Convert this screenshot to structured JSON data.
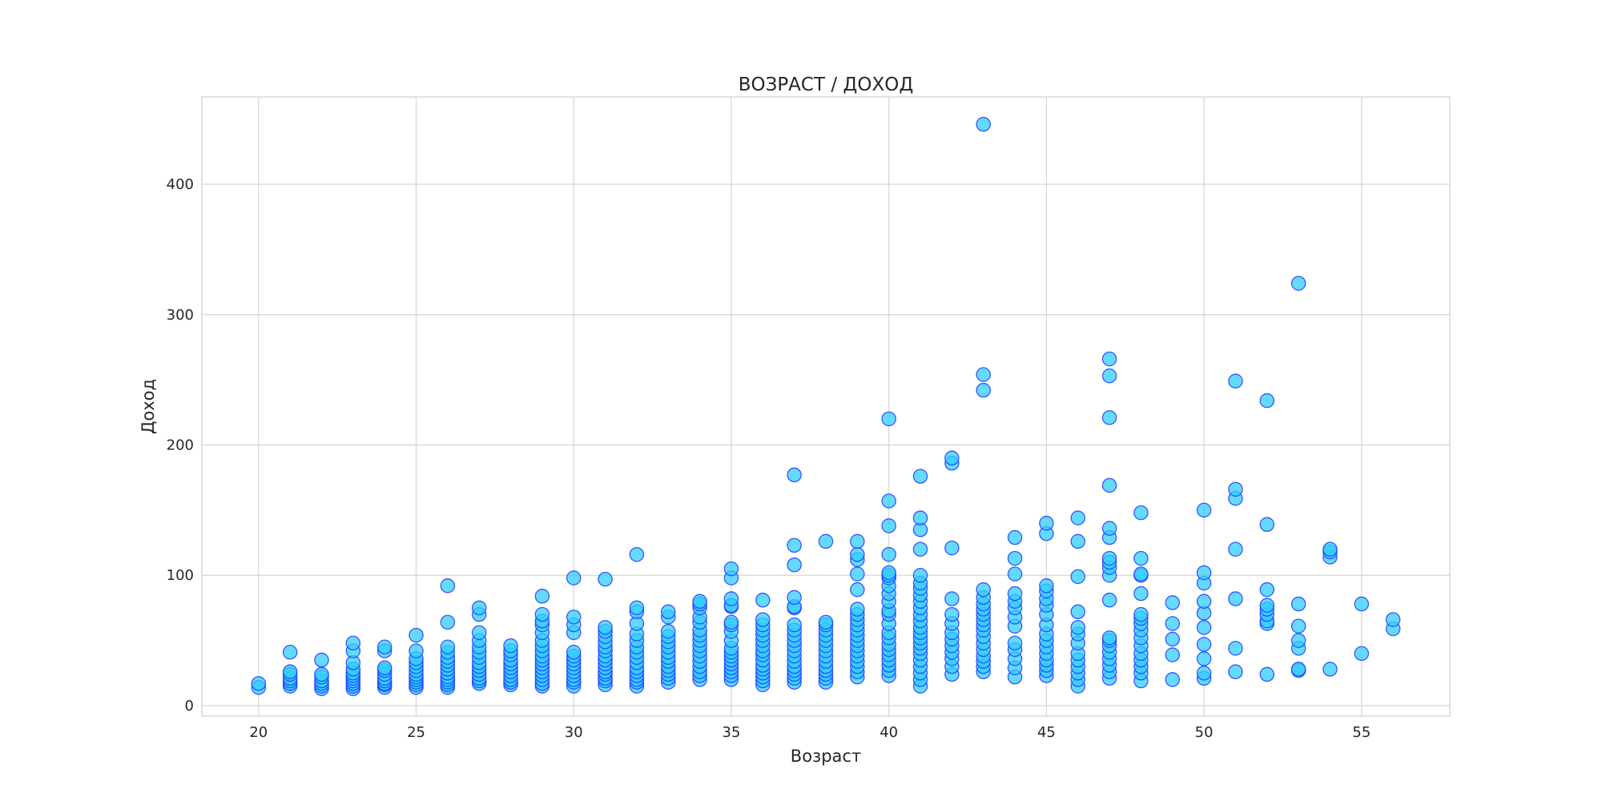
{
  "chart_data": {
    "type": "scatter",
    "title": "ВОЗРАСТ / ДОХОД",
    "xlabel": "Возраст",
    "ylabel": "Доход",
    "xlim": [
      18.2,
      57.8
    ],
    "ylim": [
      -8,
      467
    ],
    "xticks": [
      20,
      25,
      30,
      35,
      40,
      45,
      50,
      55
    ],
    "yticks": [
      0,
      100,
      200,
      300,
      400
    ],
    "grid": true,
    "marker_fill": "#33ccff",
    "marker_edge": "#1f3dff",
    "marker_alpha": 0.75,
    "points": [
      [
        20,
        14
      ],
      [
        20,
        17
      ],
      [
        21,
        15
      ],
      [
        21,
        17
      ],
      [
        21,
        19
      ],
      [
        21,
        21
      ],
      [
        21,
        24
      ],
      [
        21,
        26
      ],
      [
        21,
        41
      ],
      [
        22,
        13
      ],
      [
        22,
        15
      ],
      [
        22,
        17
      ],
      [
        22,
        19
      ],
      [
        22,
        22
      ],
      [
        22,
        24
      ],
      [
        22,
        35
      ],
      [
        23,
        13
      ],
      [
        23,
        15
      ],
      [
        23,
        17
      ],
      [
        23,
        19
      ],
      [
        23,
        21
      ],
      [
        23,
        23
      ],
      [
        23,
        25
      ],
      [
        23,
        28
      ],
      [
        23,
        33
      ],
      [
        23,
        42
      ],
      [
        23,
        48
      ],
      [
        24,
        14
      ],
      [
        24,
        16
      ],
      [
        24,
        17
      ],
      [
        24,
        19
      ],
      [
        24,
        21
      ],
      [
        24,
        24
      ],
      [
        24,
        27
      ],
      [
        24,
        29
      ],
      [
        24,
        42
      ],
      [
        24,
        45
      ],
      [
        25,
        14
      ],
      [
        25,
        16
      ],
      [
        25,
        18
      ],
      [
        25,
        20
      ],
      [
        25,
        22
      ],
      [
        25,
        24
      ],
      [
        25,
        27
      ],
      [
        25,
        30
      ],
      [
        25,
        33
      ],
      [
        25,
        36
      ],
      [
        25,
        42
      ],
      [
        25,
        54
      ],
      [
        26,
        14
      ],
      [
        26,
        16
      ],
      [
        26,
        18
      ],
      [
        26,
        20
      ],
      [
        26,
        22
      ],
      [
        26,
        25
      ],
      [
        26,
        28
      ],
      [
        26,
        31
      ],
      [
        26,
        34
      ],
      [
        26,
        37
      ],
      [
        26,
        41
      ],
      [
        26,
        45
      ],
      [
        26,
        64
      ],
      [
        26,
        92
      ],
      [
        27,
        17
      ],
      [
        27,
        19
      ],
      [
        27,
        21
      ],
      [
        27,
        24
      ],
      [
        27,
        27
      ],
      [
        27,
        30
      ],
      [
        27,
        33
      ],
      [
        27,
        37
      ],
      [
        27,
        41
      ],
      [
        27,
        45
      ],
      [
        27,
        50
      ],
      [
        27,
        56
      ],
      [
        27,
        70
      ],
      [
        27,
        75
      ],
      [
        28,
        16
      ],
      [
        28,
        18
      ],
      [
        28,
        20
      ],
      [
        28,
        23
      ],
      [
        28,
        26
      ],
      [
        28,
        29
      ],
      [
        28,
        32
      ],
      [
        28,
        35
      ],
      [
        28,
        39
      ],
      [
        28,
        42
      ],
      [
        28,
        46
      ],
      [
        29,
        15
      ],
      [
        29,
        17
      ],
      [
        29,
        20
      ],
      [
        29,
        23
      ],
      [
        29,
        26
      ],
      [
        29,
        29
      ],
      [
        29,
        32
      ],
      [
        29,
        35
      ],
      [
        29,
        38
      ],
      [
        29,
        42
      ],
      [
        29,
        46
      ],
      [
        29,
        50
      ],
      [
        29,
        56
      ],
      [
        29,
        62
      ],
      [
        29,
        65
      ],
      [
        29,
        70
      ],
      [
        29,
        84
      ],
      [
        30,
        15
      ],
      [
        30,
        18
      ],
      [
        30,
        20
      ],
      [
        30,
        23
      ],
      [
        30,
        26
      ],
      [
        30,
        29
      ],
      [
        30,
        32
      ],
      [
        30,
        35
      ],
      [
        30,
        38
      ],
      [
        30,
        41
      ],
      [
        30,
        56
      ],
      [
        30,
        62
      ],
      [
        30,
        68
      ],
      [
        30,
        98
      ],
      [
        31,
        16
      ],
      [
        31,
        19
      ],
      [
        31,
        21
      ],
      [
        31,
        24
      ],
      [
        31,
        26
      ],
      [
        31,
        29
      ],
      [
        31,
        32
      ],
      [
        31,
        35
      ],
      [
        31,
        38
      ],
      [
        31,
        42
      ],
      [
        31,
        45
      ],
      [
        31,
        49
      ],
      [
        31,
        53
      ],
      [
        31,
        57
      ],
      [
        31,
        60
      ],
      [
        31,
        97
      ],
      [
        32,
        15
      ],
      [
        32,
        18
      ],
      [
        32,
        20
      ],
      [
        32,
        23
      ],
      [
        32,
        26
      ],
      [
        32,
        29
      ],
      [
        32,
        33
      ],
      [
        32,
        37
      ],
      [
        32,
        41
      ],
      [
        32,
        45
      ],
      [
        32,
        50
      ],
      [
        32,
        55
      ],
      [
        32,
        63
      ],
      [
        32,
        72
      ],
      [
        32,
        75
      ],
      [
        32,
        116
      ],
      [
        33,
        18
      ],
      [
        33,
        21
      ],
      [
        33,
        24
      ],
      [
        33,
        27
      ],
      [
        33,
        30
      ],
      [
        33,
        34
      ],
      [
        33,
        37
      ],
      [
        33,
        41
      ],
      [
        33,
        45
      ],
      [
        33,
        49
      ],
      [
        33,
        53
      ],
      [
        33,
        57
      ],
      [
        33,
        68
      ],
      [
        33,
        72
      ],
      [
        34,
        20
      ],
      [
        34,
        23
      ],
      [
        34,
        26
      ],
      [
        34,
        30
      ],
      [
        34,
        34
      ],
      [
        34,
        38
      ],
      [
        34,
        42
      ],
      [
        34,
        46
      ],
      [
        34,
        50
      ],
      [
        34,
        54
      ],
      [
        34,
        58
      ],
      [
        34,
        64
      ],
      [
        34,
        68
      ],
      [
        34,
        75
      ],
      [
        34,
        78
      ],
      [
        34,
        80
      ],
      [
        35,
        20
      ],
      [
        35,
        23
      ],
      [
        35,
        26
      ],
      [
        35,
        29
      ],
      [
        35,
        32
      ],
      [
        35,
        35
      ],
      [
        35,
        38
      ],
      [
        35,
        41
      ],
      [
        35,
        44
      ],
      [
        35,
        50
      ],
      [
        35,
        57
      ],
      [
        35,
        62
      ],
      [
        35,
        64
      ],
      [
        35,
        76
      ],
      [
        35,
        77
      ],
      [
        35,
        82
      ],
      [
        35,
        98
      ],
      [
        35,
        105
      ],
      [
        36,
        16
      ],
      [
        36,
        19
      ],
      [
        36,
        22
      ],
      [
        36,
        25
      ],
      [
        36,
        28
      ],
      [
        36,
        31
      ],
      [
        36,
        35
      ],
      [
        36,
        39
      ],
      [
        36,
        42
      ],
      [
        36,
        46
      ],
      [
        36,
        50
      ],
      [
        36,
        54
      ],
      [
        36,
        58
      ],
      [
        36,
        62
      ],
      [
        36,
        66
      ],
      [
        36,
        81
      ],
      [
        37,
        18
      ],
      [
        37,
        21
      ],
      [
        37,
        24
      ],
      [
        37,
        27
      ],
      [
        37,
        30
      ],
      [
        37,
        34
      ],
      [
        37,
        38
      ],
      [
        37,
        42
      ],
      [
        37,
        46
      ],
      [
        37,
        50
      ],
      [
        37,
        54
      ],
      [
        37,
        58
      ],
      [
        37,
        62
      ],
      [
        37,
        75
      ],
      [
        37,
        76
      ],
      [
        37,
        83
      ],
      [
        37,
        108
      ],
      [
        37,
        123
      ],
      [
        37,
        177
      ],
      [
        38,
        18
      ],
      [
        38,
        21
      ],
      [
        38,
        24
      ],
      [
        38,
        27
      ],
      [
        38,
        30
      ],
      [
        38,
        34
      ],
      [
        38,
        38
      ],
      [
        38,
        42
      ],
      [
        38,
        46
      ],
      [
        38,
        50
      ],
      [
        38,
        54
      ],
      [
        38,
        58
      ],
      [
        38,
        62
      ],
      [
        38,
        64
      ],
      [
        38,
        126
      ],
      [
        39,
        22
      ],
      [
        39,
        26
      ],
      [
        39,
        30
      ],
      [
        39,
        34
      ],
      [
        39,
        38
      ],
      [
        39,
        42
      ],
      [
        39,
        46
      ],
      [
        39,
        50
      ],
      [
        39,
        54
      ],
      [
        39,
        58
      ],
      [
        39,
        62
      ],
      [
        39,
        66
      ],
      [
        39,
        70
      ],
      [
        39,
        74
      ],
      [
        39,
        89
      ],
      [
        39,
        101
      ],
      [
        39,
        112
      ],
      [
        39,
        116
      ],
      [
        39,
        126
      ],
      [
        40,
        23
      ],
      [
        40,
        27
      ],
      [
        40,
        31
      ],
      [
        40,
        35
      ],
      [
        40,
        39
      ],
      [
        40,
        43
      ],
      [
        40,
        47
      ],
      [
        40,
        52
      ],
      [
        40,
        56
      ],
      [
        40,
        63
      ],
      [
        40,
        70
      ],
      [
        40,
        73
      ],
      [
        40,
        80
      ],
      [
        40,
        86
      ],
      [
        40,
        92
      ],
      [
        40,
        98
      ],
      [
        40,
        100
      ],
      [
        40,
        102
      ],
      [
        40,
        116
      ],
      [
        40,
        138
      ],
      [
        40,
        157
      ],
      [
        40,
        220
      ],
      [
        41,
        15
      ],
      [
        41,
        20
      ],
      [
        41,
        25
      ],
      [
        41,
        30
      ],
      [
        41,
        35
      ],
      [
        41,
        40
      ],
      [
        41,
        44
      ],
      [
        41,
        48
      ],
      [
        41,
        52
      ],
      [
        41,
        56
      ],
      [
        41,
        60
      ],
      [
        41,
        65
      ],
      [
        41,
        70
      ],
      [
        41,
        75
      ],
      [
        41,
        80
      ],
      [
        41,
        85
      ],
      [
        41,
        90
      ],
      [
        41,
        94
      ],
      [
        41,
        100
      ],
      [
        41,
        120
      ],
      [
        41,
        135
      ],
      [
        41,
        144
      ],
      [
        41,
        176
      ],
      [
        42,
        24
      ],
      [
        42,
        30
      ],
      [
        42,
        36
      ],
      [
        42,
        41
      ],
      [
        42,
        46
      ],
      [
        42,
        51
      ],
      [
        42,
        56
      ],
      [
        42,
        63
      ],
      [
        42,
        70
      ],
      [
        42,
        82
      ],
      [
        42,
        121
      ],
      [
        42,
        186
      ],
      [
        42,
        190
      ],
      [
        43,
        26
      ],
      [
        43,
        30
      ],
      [
        43,
        34
      ],
      [
        43,
        38
      ],
      [
        43,
        43
      ],
      [
        43,
        48
      ],
      [
        43,
        53
      ],
      [
        43,
        58
      ],
      [
        43,
        62
      ],
      [
        43,
        66
      ],
      [
        43,
        70
      ],
      [
        43,
        74
      ],
      [
        43,
        78
      ],
      [
        43,
        83
      ],
      [
        43,
        89
      ],
      [
        43,
        242
      ],
      [
        43,
        254
      ],
      [
        43,
        446
      ],
      [
        44,
        22
      ],
      [
        44,
        29
      ],
      [
        44,
        36
      ],
      [
        44,
        43
      ],
      [
        44,
        48
      ],
      [
        44,
        61
      ],
      [
        44,
        68
      ],
      [
        44,
        75
      ],
      [
        44,
        80
      ],
      [
        44,
        86
      ],
      [
        44,
        101
      ],
      [
        44,
        113
      ],
      [
        44,
        129
      ],
      [
        45,
        23
      ],
      [
        45,
        27
      ],
      [
        45,
        31
      ],
      [
        45,
        35
      ],
      [
        45,
        40
      ],
      [
        45,
        45
      ],
      [
        45,
        50
      ],
      [
        45,
        55
      ],
      [
        45,
        62
      ],
      [
        45,
        70
      ],
      [
        45,
        77
      ],
      [
        45,
        82
      ],
      [
        45,
        88
      ],
      [
        45,
        92
      ],
      [
        45,
        132
      ],
      [
        45,
        140
      ],
      [
        46,
        15
      ],
      [
        46,
        20
      ],
      [
        46,
        25
      ],
      [
        46,
        30
      ],
      [
        46,
        35
      ],
      [
        46,
        40
      ],
      [
        46,
        48
      ],
      [
        46,
        55
      ],
      [
        46,
        60
      ],
      [
        46,
        72
      ],
      [
        46,
        99
      ],
      [
        46,
        126
      ],
      [
        46,
        144
      ],
      [
        47,
        21
      ],
      [
        47,
        26
      ],
      [
        47,
        31
      ],
      [
        47,
        36
      ],
      [
        47,
        41
      ],
      [
        47,
        46
      ],
      [
        47,
        50
      ],
      [
        47,
        52
      ],
      [
        47,
        81
      ],
      [
        47,
        100
      ],
      [
        47,
        106
      ],
      [
        47,
        110
      ],
      [
        47,
        113
      ],
      [
        47,
        129
      ],
      [
        47,
        136
      ],
      [
        47,
        169
      ],
      [
        47,
        221
      ],
      [
        47,
        253
      ],
      [
        47,
        266
      ],
      [
        48,
        19
      ],
      [
        48,
        25
      ],
      [
        48,
        30
      ],
      [
        48,
        35
      ],
      [
        48,
        40
      ],
      [
        48,
        46
      ],
      [
        48,
        52
      ],
      [
        48,
        58
      ],
      [
        48,
        63
      ],
      [
        48,
        67
      ],
      [
        48,
        70
      ],
      [
        48,
        86
      ],
      [
        48,
        100
      ],
      [
        48,
        101
      ],
      [
        48,
        113
      ],
      [
        48,
        148
      ],
      [
        49,
        20
      ],
      [
        49,
        39
      ],
      [
        49,
        51
      ],
      [
        49,
        63
      ],
      [
        49,
        79
      ],
      [
        50,
        21
      ],
      [
        50,
        25
      ],
      [
        50,
        36
      ],
      [
        50,
        47
      ],
      [
        50,
        60
      ],
      [
        50,
        71
      ],
      [
        50,
        80
      ],
      [
        50,
        94
      ],
      [
        50,
        102
      ],
      [
        50,
        150
      ],
      [
        51,
        26
      ],
      [
        51,
        44
      ],
      [
        51,
        82
      ],
      [
        51,
        120
      ],
      [
        51,
        159
      ],
      [
        51,
        166
      ],
      [
        51,
        249
      ],
      [
        52,
        24
      ],
      [
        52,
        63
      ],
      [
        52,
        65
      ],
      [
        52,
        70
      ],
      [
        52,
        74
      ],
      [
        52,
        77
      ],
      [
        52,
        89
      ],
      [
        52,
        139
      ],
      [
        52,
        234
      ],
      [
        53,
        27
      ],
      [
        53,
        28
      ],
      [
        53,
        44
      ],
      [
        53,
        50
      ],
      [
        53,
        61
      ],
      [
        53,
        78
      ],
      [
        53,
        324
      ],
      [
        54,
        28
      ],
      [
        54,
        114
      ],
      [
        54,
        118
      ],
      [
        54,
        120
      ],
      [
        55,
        40
      ],
      [
        55,
        78
      ],
      [
        56,
        59
      ],
      [
        56,
        66
      ]
    ]
  }
}
